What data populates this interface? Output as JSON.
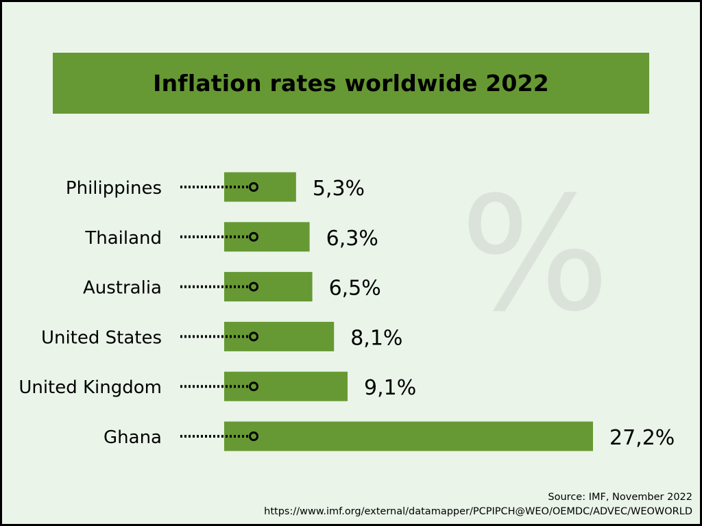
{
  "watermark": "%",
  "colors": {
    "bar": "#669933",
    "background": "#eaf4e9",
    "text": "#000000"
  },
  "chart_data": {
    "type": "bar",
    "orientation": "horizontal",
    "title": "Inflation rates worldwide 2022",
    "categories": [
      "Philippines",
      "Thailand",
      "Australia",
      "United States",
      "United Kingdom",
      "Ghana"
    ],
    "values": [
      5.3,
      6.3,
      6.5,
      8.1,
      9.1,
      27.2
    ],
    "labels": [
      "5,3%",
      "6,3%",
      "6,5%",
      "8,1%",
      "9,1%",
      "27,2%"
    ],
    "unit": "%",
    "xlim": [
      0,
      27.2
    ],
    "grid": false
  },
  "source": {
    "line1": "Source: IMF, November 2022",
    "line2": "https://www.imf.org/external/datamapper/PCPIPCH@WEO/OEMDC/ADVEC/WEOWORLD"
  }
}
